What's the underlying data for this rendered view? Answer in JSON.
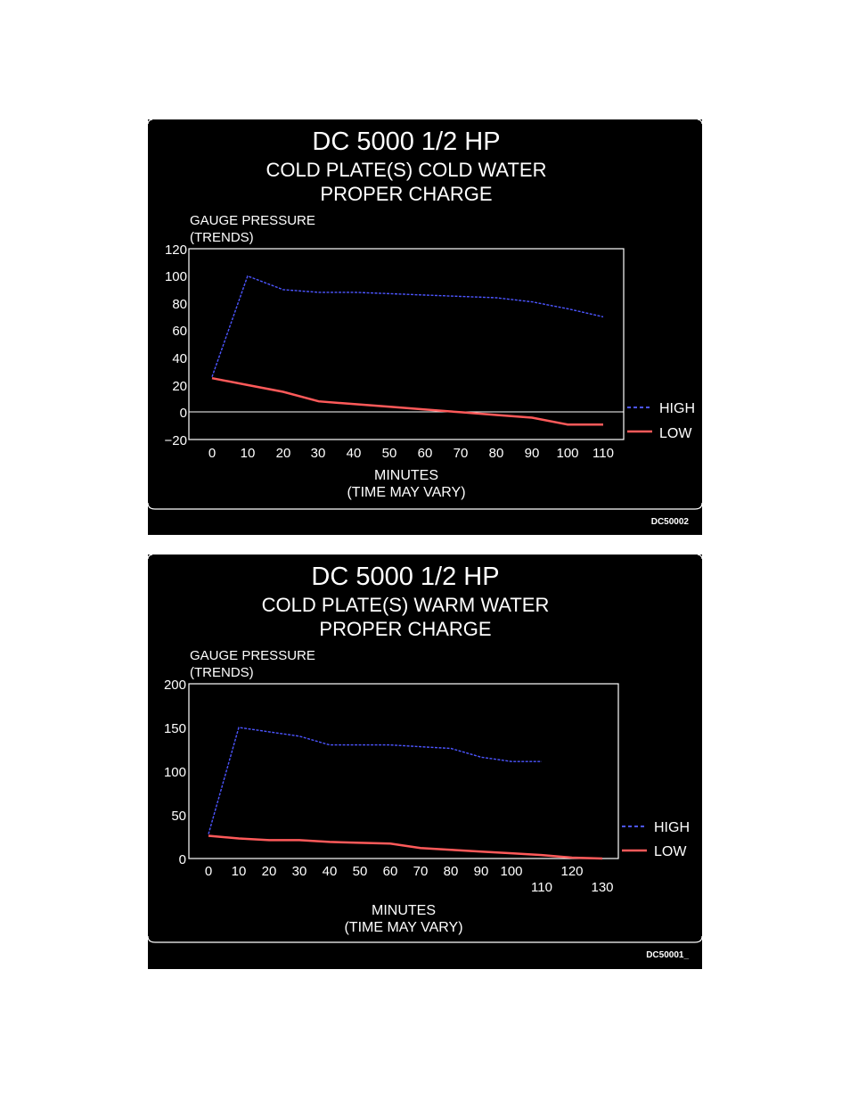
{
  "colors": {
    "high": "#4c55ff",
    "low": "#ff5a5a",
    "frame": "#ffffff",
    "background": "#000000"
  },
  "legend": {
    "high": "HIGH",
    "low": "LOW"
  },
  "chart_data": [
    {
      "type": "line",
      "title": "DC 5000 1/2 HP",
      "subtitle_1": "COLD PLATE(S) COLD WATER",
      "subtitle_2": "PROPER CHARGE",
      "ylabel_1": "GAUGE PRESSURE",
      "ylabel_2": "(TRENDS)",
      "xlabel": "MINUTES",
      "xlabel_2": "(TIME MAY VARY)",
      "figure_id": "DC50002",
      "xlim": [
        0,
        110
      ],
      "ylim": [
        -20,
        120
      ],
      "xticks": [
        "0",
        "10",
        "20",
        "30",
        "40",
        "50",
        "60",
        "70",
        "80",
        "90",
        "100",
        "110"
      ],
      "yticks": [
        "120",
        "100",
        "80",
        "60",
        "40",
        "20",
        "0",
        "−20"
      ],
      "zero_line": true,
      "legend_position": "right",
      "series": [
        {
          "name": "HIGH",
          "style": "dashed",
          "x": [
            0,
            10,
            20,
            30,
            40,
            50,
            60,
            70,
            80,
            90,
            100,
            110
          ],
          "y": [
            26,
            100,
            90,
            88,
            88,
            87,
            86,
            85,
            84,
            81,
            76,
            70
          ]
        },
        {
          "name": "LOW",
          "style": "solid",
          "x": [
            0,
            10,
            20,
            30,
            40,
            50,
            60,
            70,
            80,
            90,
            100,
            110
          ],
          "y": [
            25,
            20,
            15,
            8,
            6,
            4,
            2,
            0,
            -2,
            -4,
            -9,
            -9
          ]
        }
      ]
    },
    {
      "type": "line",
      "title": "DC 5000 1/2 HP",
      "subtitle_1": "COLD PLATE(S) WARM WATER",
      "subtitle_2": "PROPER CHARGE",
      "ylabel_1": "GAUGE PRESSURE",
      "ylabel_2": "(TRENDS)",
      "xlabel": "MINUTES",
      "xlabel_2": "(TIME MAY VARY)",
      "figure_id": "DC50001_",
      "xlim": [
        0,
        130
      ],
      "ylim": [
        0,
        200
      ],
      "xticks": [
        "0",
        "10",
        "20",
        "30",
        "40",
        "50",
        "60",
        "70",
        "80",
        "90",
        "100",
        "110",
        "120",
        "130"
      ],
      "yticks": [
        "200",
        "150",
        "100",
        "50",
        "0"
      ],
      "zero_line": false,
      "legend_position": "right",
      "series": [
        {
          "name": "HIGH",
          "style": "dashed",
          "x": [
            0,
            10,
            20,
            30,
            40,
            50,
            60,
            70,
            80,
            90,
            100,
            110
          ],
          "y": [
            28,
            150,
            145,
            140,
            130,
            130,
            130,
            128,
            126,
            116,
            111,
            111
          ]
        },
        {
          "name": "LOW",
          "style": "solid",
          "x": [
            0,
            10,
            20,
            30,
            40,
            50,
            60,
            70,
            80,
            90,
            100,
            110,
            120,
            130
          ],
          "y": [
            26,
            23,
            21,
            21,
            19,
            18,
            17,
            12,
            10,
            8,
            6,
            4,
            1,
            0
          ]
        }
      ]
    }
  ]
}
